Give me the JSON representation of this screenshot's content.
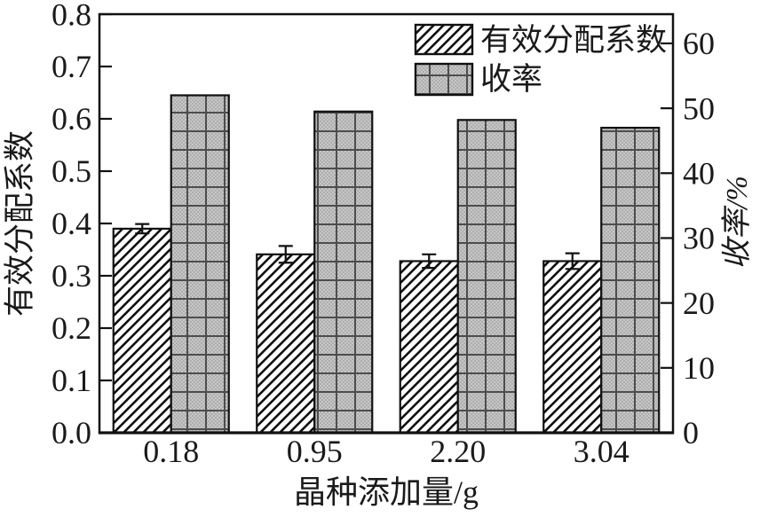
{
  "chart_data": {
    "type": "bar",
    "categories": [
      "0.18",
      "0.95",
      "2.20",
      "3.04"
    ],
    "series": [
      {
        "name": "有效分配系数",
        "axis": "left",
        "pattern": "diagonal-hatch",
        "values": [
          0.39,
          0.341,
          0.328,
          0.328
        ],
        "errors": [
          0.009,
          0.016,
          0.013,
          0.015
        ]
      },
      {
        "name": "收率",
        "axis": "right",
        "pattern": "gray-crosshatch",
        "values": [
          52.0,
          49.5,
          48.2,
          47.0
        ],
        "errors": [
          0,
          0,
          0,
          0
        ]
      }
    ],
    "left_axis": {
      "label": "有效分配系数",
      "min": 0.0,
      "max": 0.8,
      "tick_labels": [
        "0.0",
        "0.1",
        "0.2",
        "0.3",
        "0.4",
        "0.5",
        "0.6",
        "0.7",
        "0.8"
      ],
      "tick_values": [
        0.0,
        0.1,
        0.2,
        0.3,
        0.4,
        0.5,
        0.6,
        0.7,
        0.8
      ]
    },
    "right_axis": {
      "label": "收率/%",
      "min": 0,
      "max": 64.5,
      "tick_labels": [
        "0",
        "10",
        "20",
        "30",
        "40",
        "50",
        "60"
      ],
      "tick_values": [
        0,
        10,
        20,
        30,
        40,
        50,
        60
      ]
    },
    "x_axis": {
      "label": "晶种添加量/g"
    },
    "legend": {
      "position": "top-center-inside",
      "entries": [
        "有效分配系数",
        "收率"
      ]
    },
    "grid": false,
    "colors": {
      "background": "#ffffff",
      "bar_outline": "#111111",
      "hatch_line": "#111111",
      "gray_fill_light": "#c7c7c7",
      "gray_fill_dark": "#adadad",
      "grid_line_on_bar": "#4d4d4d",
      "axis": "#111111",
      "text": "#1a1a1a"
    }
  }
}
